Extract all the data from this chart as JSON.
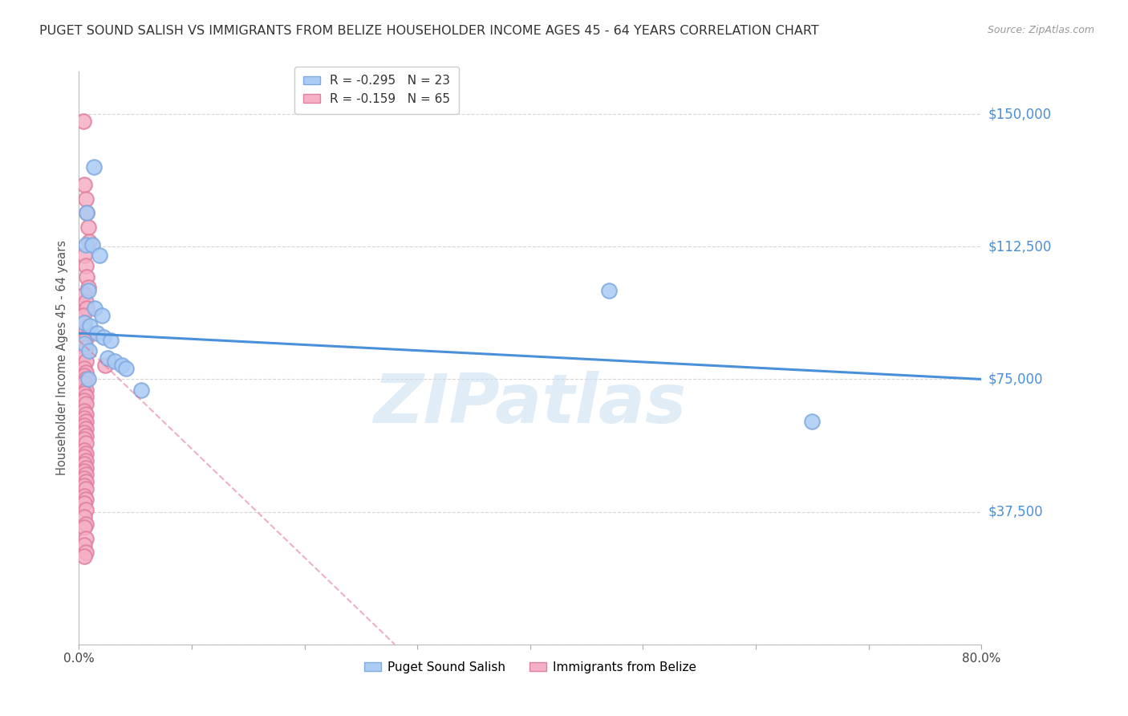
{
  "title": "PUGET SOUND SALISH VS IMMIGRANTS FROM BELIZE HOUSEHOLDER INCOME AGES 45 - 64 YEARS CORRELATION CHART",
  "source": "Source: ZipAtlas.com",
  "ylabel": "Householder Income Ages 45 - 64 years",
  "xlim": [
    0.0,
    0.8
  ],
  "ylim": [
    0,
    162000
  ],
  "yticks": [
    0,
    37500,
    75000,
    112500,
    150000
  ],
  "ytick_labels": [
    "",
    "$37,500",
    "$75,000",
    "$112,500",
    "$150,000"
  ],
  "xtick_positions": [
    0.0,
    0.1,
    0.2,
    0.3,
    0.4,
    0.5,
    0.6,
    0.7,
    0.8
  ],
  "xtick_labels": [
    "0.0%",
    "",
    "",
    "",
    "",
    "",
    "",
    "",
    "80.0%"
  ],
  "blue_scatter_x": [
    0.013,
    0.007,
    0.006,
    0.012,
    0.018,
    0.008,
    0.014,
    0.02,
    0.005,
    0.01,
    0.016,
    0.022,
    0.028,
    0.005,
    0.009,
    0.025,
    0.032,
    0.038,
    0.042,
    0.008,
    0.055,
    0.47,
    0.65
  ],
  "blue_scatter_y": [
    135000,
    122000,
    113000,
    113000,
    110000,
    100000,
    95000,
    93000,
    91000,
    90000,
    88000,
    87000,
    86000,
    85000,
    83000,
    81000,
    80000,
    79000,
    78000,
    75000,
    72000,
    100000,
    63000
  ],
  "pink_scatter_x": [
    0.004,
    0.005,
    0.006,
    0.007,
    0.008,
    0.009,
    0.005,
    0.006,
    0.007,
    0.008,
    0.005,
    0.006,
    0.007,
    0.004,
    0.005,
    0.006,
    0.007,
    0.005,
    0.006,
    0.005,
    0.006,
    0.005,
    0.006,
    0.005,
    0.006,
    0.005,
    0.006,
    0.005,
    0.006,
    0.005,
    0.006,
    0.005,
    0.006,
    0.005,
    0.006,
    0.005,
    0.006,
    0.005,
    0.006,
    0.005,
    0.006,
    0.005,
    0.006,
    0.005,
    0.006,
    0.005,
    0.006,
    0.005,
    0.006,
    0.005,
    0.006,
    0.005,
    0.006,
    0.005,
    0.006,
    0.005,
    0.006,
    0.005,
    0.006,
    0.005,
    0.006,
    0.005,
    0.006,
    0.023,
    0.005
  ],
  "pink_scatter_y": [
    148000,
    130000,
    126000,
    122000,
    118000,
    114000,
    110000,
    107000,
    104000,
    101000,
    99000,
    97000,
    95000,
    93000,
    91000,
    89000,
    87000,
    86000,
    84000,
    82000,
    80000,
    78000,
    77000,
    76000,
    75000,
    74000,
    72000,
    71000,
    70000,
    69000,
    68000,
    66000,
    65000,
    64000,
    63000,
    62000,
    61000,
    60000,
    59000,
    58000,
    57000,
    55000,
    54000,
    53000,
    52000,
    51000,
    50000,
    49000,
    48000,
    47000,
    46000,
    45000,
    44000,
    42000,
    41000,
    40000,
    38000,
    36000,
    34000,
    33000,
    30000,
    28000,
    26000,
    79000,
    25000
  ],
  "blue_trend_x0": 0.0,
  "blue_trend_y0": 88000,
  "blue_trend_x1": 0.8,
  "blue_trend_y1": 75000,
  "pink_trend_x0": 0.0,
  "pink_trend_y0": 86000,
  "pink_trend_x1": 0.28,
  "pink_trend_y1": 0,
  "blue_trend_color": "#4a90d9",
  "pink_trend_color": "#e07090",
  "blue_marker_facecolor": "#aaccf5",
  "blue_marker_edgecolor": "#80aae0",
  "pink_marker_facecolor": "#f5b0c5",
  "pink_marker_edgecolor": "#e080a0",
  "watermark_color": "#c8dff0",
  "background_color": "#ffffff",
  "grid_color": "#cccccc",
  "axis_color": "#4a90d9",
  "title_color": "#333333",
  "title_fontsize": 11.5,
  "marker_size": 180,
  "blue_R": -0.295,
  "blue_N": 23,
  "pink_R": -0.159,
  "pink_N": 65
}
